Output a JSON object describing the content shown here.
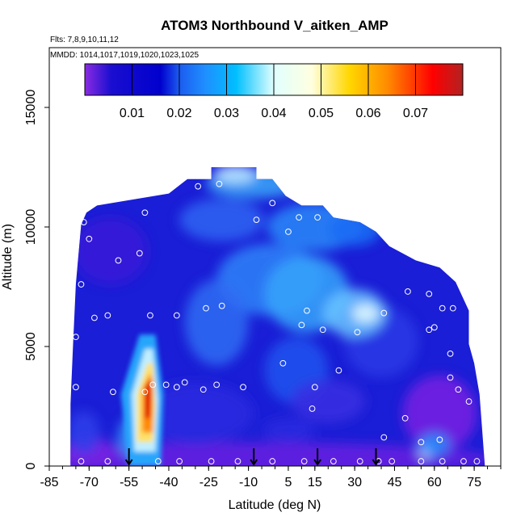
{
  "chart_data": {
    "type": "heatmap",
    "title": "ATOM3 Northbound V_aitken_AMP",
    "subtitle_flights": "Flts: 7,8,9,10,11,12",
    "subtitle_dates": "MMDD: 1014,1017,1019,1020,1023,1025",
    "xlabel": "Latitude (deg N)",
    "ylabel": "Altitude (m)",
    "xlim": [
      -85,
      85
    ],
    "ylim": [
      0,
      17500
    ],
    "x_ticks": [
      -85,
      -70,
      -55,
      -40,
      -25,
      -10,
      5,
      15,
      30,
      45,
      60,
      75
    ],
    "x_tick_labels": [
      "-85",
      "-70",
      "-55",
      "-40",
      "-25",
      "-10",
      "5",
      "15",
      "30",
      "45",
      "60",
      "75"
    ],
    "y_ticks": [
      0,
      5000,
      10000,
      15000
    ],
    "y_tick_labels": [
      "0",
      "5000",
      "10000",
      "15000"
    ],
    "colorbar": {
      "range": [
        0,
        0.08
      ],
      "ticks": [
        0.01,
        0.02,
        0.03,
        0.04,
        0.05,
        0.06,
        0.07
      ],
      "tick_labels": [
        "0.01",
        "0.02",
        "0.03",
        "0.04",
        "0.05",
        "0.06",
        "0.07"
      ],
      "colors": [
        "#8a2be2",
        "#0000cd",
        "#1e90ff",
        "#00bfff",
        "#e0ffff",
        "#ffffe0",
        "#ffd700",
        "#ff8c00",
        "#ff0000",
        "#b22222"
      ]
    },
    "arrows_lat": [
      -55,
      -8,
      16,
      38
    ],
    "sample_points": [
      [
        -72,
        10200
      ],
      [
        -70,
        9500
      ],
      [
        -73,
        7600
      ],
      [
        -68,
        6200
      ],
      [
        -59,
        8600
      ],
      [
        -51,
        8900
      ],
      [
        -49,
        10600
      ],
      [
        -37,
        6300
      ],
      [
        -26,
        6600
      ],
      [
        -20,
        6700
      ],
      [
        -21,
        11800
      ],
      [
        -29,
        11700
      ],
      [
        -7,
        10300
      ],
      [
        -1,
        11000
      ],
      [
        5,
        9800
      ],
      [
        9,
        10400
      ],
      [
        16,
        10400
      ],
      [
        12,
        6500
      ],
      [
        18,
        5700
      ],
      [
        24,
        4000
      ],
      [
        10,
        5900
      ],
      [
        3,
        4300
      ],
      [
        -12,
        3300
      ],
      [
        -22,
        3400
      ],
      [
        -27,
        3200
      ],
      [
        -37,
        3300
      ],
      [
        -46,
        3400
      ],
      [
        -49,
        3100
      ],
      [
        -61,
        3100
      ],
      [
        -75,
        3300
      ],
      [
        -75,
        5400
      ],
      [
        -63,
        6300
      ],
      [
        -47,
        6300
      ],
      [
        -41,
        3400
      ],
      [
        -34,
        3500
      ],
      [
        14,
        2400
      ],
      [
        15,
        3300
      ],
      [
        31,
        5600
      ],
      [
        41,
        6400
      ],
      [
        50,
        7300
      ],
      [
        58,
        7200
      ],
      [
        63,
        6600
      ],
      [
        67,
        6600
      ],
      [
        58,
        5700
      ],
      [
        60,
        5800
      ],
      [
        66,
        4700
      ],
      [
        66,
        3700
      ],
      [
        69,
        3200
      ],
      [
        73,
        2700
      ],
      [
        49,
        2000
      ],
      [
        41,
        1200
      ],
      [
        55,
        1000
      ],
      [
        62,
        1100
      ],
      [
        -73,
        200
      ],
      [
        -63,
        200
      ],
      [
        -44,
        200
      ],
      [
        -36,
        200
      ],
      [
        -24,
        200
      ],
      [
        -14,
        200
      ],
      [
        -1,
        200
      ],
      [
        11,
        200
      ],
      [
        22,
        200
      ],
      [
        32,
        200
      ],
      [
        39,
        200
      ],
      [
        44,
        200
      ],
      [
        55,
        200
      ],
      [
        63,
        200
      ],
      [
        71,
        200
      ],
      [
        76,
        200
      ]
    ]
  }
}
